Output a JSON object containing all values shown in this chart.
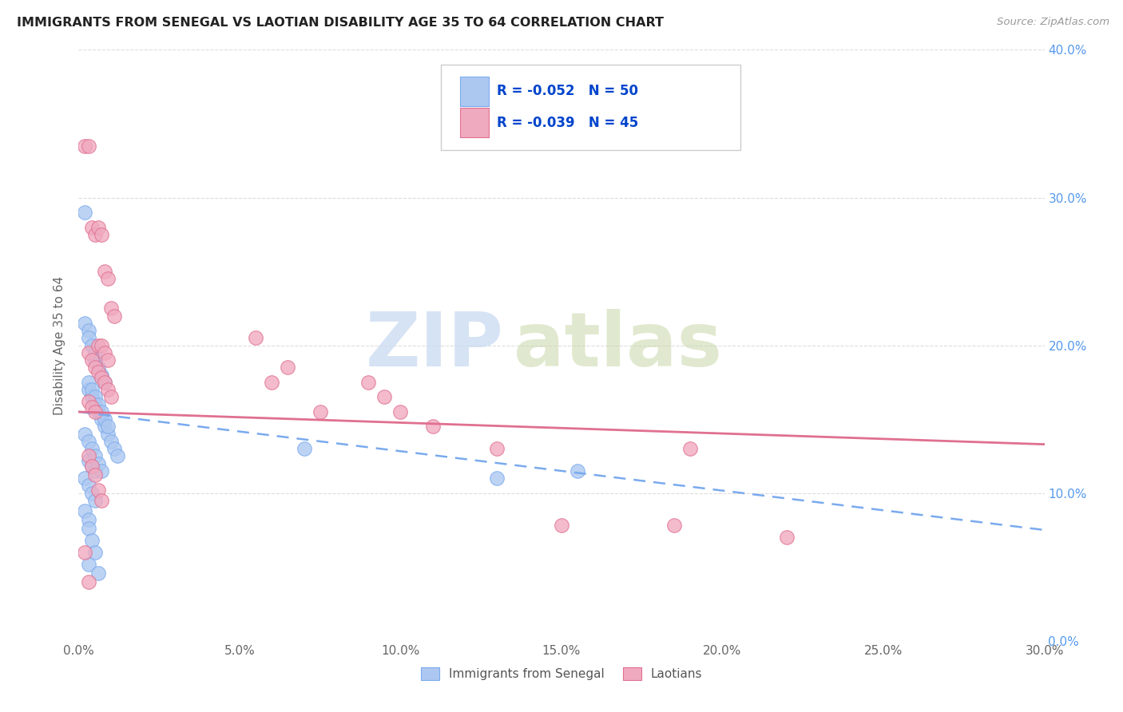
{
  "title": "IMMIGRANTS FROM SENEGAL VS LAOTIAN DISABILITY AGE 35 TO 64 CORRELATION CHART",
  "source": "Source: ZipAtlas.com",
  "ylabel": "Disability Age 35 to 64",
  "legend_labels": [
    "Immigrants from Senegal",
    "Laotians"
  ],
  "r_senegal": -0.052,
  "n_senegal": 50,
  "r_laotian": -0.039,
  "n_laotian": 45,
  "xlim": [
    0.0,
    0.3
  ],
  "ylim": [
    0.0,
    0.4
  ],
  "xtick_vals": [
    0.0,
    0.05,
    0.1,
    0.15,
    0.2,
    0.25,
    0.3
  ],
  "ytick_vals": [
    0.0,
    0.1,
    0.2,
    0.3,
    0.4
  ],
  "color_senegal_face": "#adc8f0",
  "color_senegal_edge": "#7aaaee",
  "color_laotian_face": "#f0aac0",
  "color_laotian_edge": "#e07090",
  "color_trend_senegal": "#7aaaee",
  "color_trend_laotian": "#e07090",
  "watermark_zip_color": "#c5d8f0",
  "watermark_atlas_color": "#c8d8a8",
  "grid_color": "#dddddd",
  "senegal_x": [
    0.002,
    0.002,
    0.003,
    0.003,
    0.004,
    0.005,
    0.005,
    0.006,
    0.007,
    0.008,
    0.003,
    0.004,
    0.005,
    0.006,
    0.007,
    0.008,
    0.009,
    0.01,
    0.011,
    0.012,
    0.003,
    0.004,
    0.005,
    0.003,
    0.004,
    0.005,
    0.006,
    0.007,
    0.008,
    0.009,
    0.002,
    0.003,
    0.004,
    0.005,
    0.006,
    0.007,
    0.002,
    0.003,
    0.004,
    0.005,
    0.002,
    0.003,
    0.003,
    0.004,
    0.005,
    0.003,
    0.006,
    0.07,
    0.13,
    0.155
  ],
  "senegal_y": [
    0.29,
    0.215,
    0.21,
    0.205,
    0.2,
    0.195,
    0.19,
    0.185,
    0.18,
    0.175,
    0.17,
    0.165,
    0.16,
    0.155,
    0.15,
    0.145,
    0.14,
    0.135,
    0.13,
    0.125,
    0.122,
    0.118,
    0.115,
    0.175,
    0.17,
    0.165,
    0.16,
    0.155,
    0.15,
    0.145,
    0.14,
    0.135,
    0.13,
    0.125,
    0.12,
    0.115,
    0.11,
    0.105,
    0.1,
    0.095,
    0.088,
    0.082,
    0.076,
    0.068,
    0.06,
    0.052,
    0.046,
    0.13,
    0.11,
    0.115
  ],
  "laotian_x": [
    0.002,
    0.003,
    0.004,
    0.005,
    0.006,
    0.007,
    0.008,
    0.009,
    0.01,
    0.011,
    0.003,
    0.004,
    0.005,
    0.006,
    0.007,
    0.008,
    0.009,
    0.01,
    0.003,
    0.004,
    0.005,
    0.006,
    0.007,
    0.008,
    0.009,
    0.055,
    0.06,
    0.065,
    0.075,
    0.09,
    0.095,
    0.1,
    0.11,
    0.13,
    0.15,
    0.185,
    0.19,
    0.22,
    0.003,
    0.004,
    0.005,
    0.006,
    0.007,
    0.002,
    0.003
  ],
  "laotian_y": [
    0.335,
    0.335,
    0.28,
    0.275,
    0.28,
    0.275,
    0.25,
    0.245,
    0.225,
    0.22,
    0.195,
    0.19,
    0.185,
    0.182,
    0.178,
    0.175,
    0.17,
    0.165,
    0.162,
    0.158,
    0.155,
    0.2,
    0.2,
    0.195,
    0.19,
    0.205,
    0.175,
    0.185,
    0.155,
    0.175,
    0.165,
    0.155,
    0.145,
    0.13,
    0.078,
    0.078,
    0.13,
    0.07,
    0.125,
    0.118,
    0.112,
    0.102,
    0.095,
    0.06,
    0.04
  ]
}
